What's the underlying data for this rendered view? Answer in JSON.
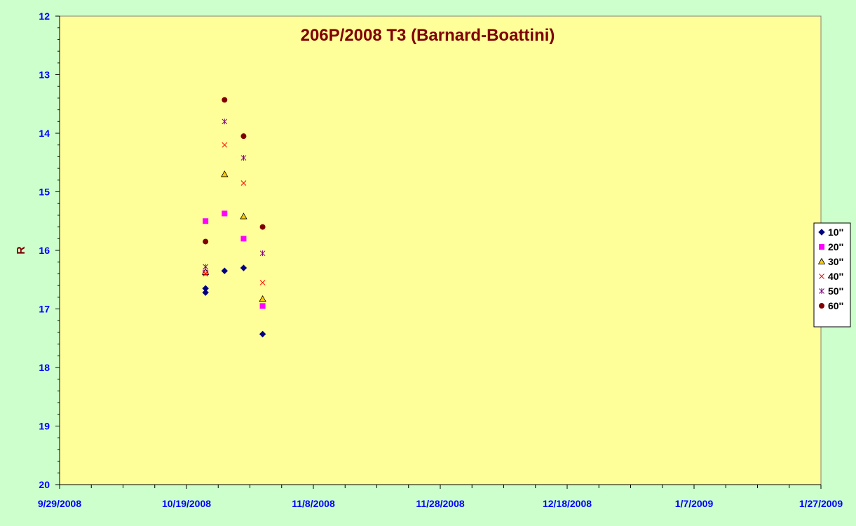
{
  "chart_data": {
    "type": "scatter",
    "title": "206P/2008 T3 (Barnard-Boattini)",
    "xlabel": "",
    "ylabel": "R",
    "x_axis": {
      "type": "date",
      "min": "2008-09-29",
      "max": "2009-01-27",
      "tick_labels": [
        "9/29/2008",
        "10/19/2008",
        "11/8/2008",
        "11/28/2008",
        "12/18/2008",
        "1/7/2009",
        "1/27/2009"
      ]
    },
    "y_axis": {
      "min": 12,
      "max": 20,
      "inverted": true,
      "tick_labels": [
        "12",
        "13",
        "14",
        "15",
        "16",
        "17",
        "18",
        "19",
        "20"
      ]
    },
    "grid": false,
    "legend_position": "right",
    "series": [
      {
        "name": "10''",
        "marker": "diamond",
        "color": "#000080",
        "points": [
          {
            "x": "2008-10-22",
            "y": 16.72
          },
          {
            "x": "2008-10-22",
            "y": 16.65
          },
          {
            "x": "2008-10-25",
            "y": 16.35
          },
          {
            "x": "2008-10-28",
            "y": 16.3
          },
          {
            "x": "2008-10-31",
            "y": 17.43
          }
        ]
      },
      {
        "name": "20''",
        "marker": "square",
        "color": "#ff00ff",
        "points": [
          {
            "x": "2008-10-22",
            "y": 15.5
          },
          {
            "x": "2008-10-22",
            "y": 16.38
          },
          {
            "x": "2008-10-25",
            "y": 15.37
          },
          {
            "x": "2008-10-28",
            "y": 15.8
          },
          {
            "x": "2008-10-31",
            "y": 16.95
          }
        ]
      },
      {
        "name": "30''",
        "marker": "triangle",
        "color": "#ffcc00",
        "points": [
          {
            "x": "2008-10-22",
            "y": 16.37
          },
          {
            "x": "2008-10-25",
            "y": 14.7
          },
          {
            "x": "2008-10-28",
            "y": 15.42
          },
          {
            "x": "2008-10-31",
            "y": 16.83
          }
        ]
      },
      {
        "name": "40''",
        "marker": "x",
        "color": "#ff0000",
        "points": [
          {
            "x": "2008-10-22",
            "y": 16.4
          },
          {
            "x": "2008-10-25",
            "y": 14.2
          },
          {
            "x": "2008-10-28",
            "y": 14.85
          },
          {
            "x": "2008-10-31",
            "y": 16.55
          }
        ]
      },
      {
        "name": "50''",
        "marker": "star",
        "color": "#800080",
        "points": [
          {
            "x": "2008-10-22",
            "y": 16.28
          },
          {
            "x": "2008-10-25",
            "y": 13.8
          },
          {
            "x": "2008-10-28",
            "y": 14.42
          },
          {
            "x": "2008-10-31",
            "y": 16.05
          }
        ]
      },
      {
        "name": "60''",
        "marker": "circle",
        "color": "#800000",
        "points": [
          {
            "x": "2008-10-22",
            "y": 15.85
          },
          {
            "x": "2008-10-25",
            "y": 13.43
          },
          {
            "x": "2008-10-28",
            "y": 14.05
          },
          {
            "x": "2008-10-31",
            "y": 15.6
          }
        ]
      }
    ]
  }
}
